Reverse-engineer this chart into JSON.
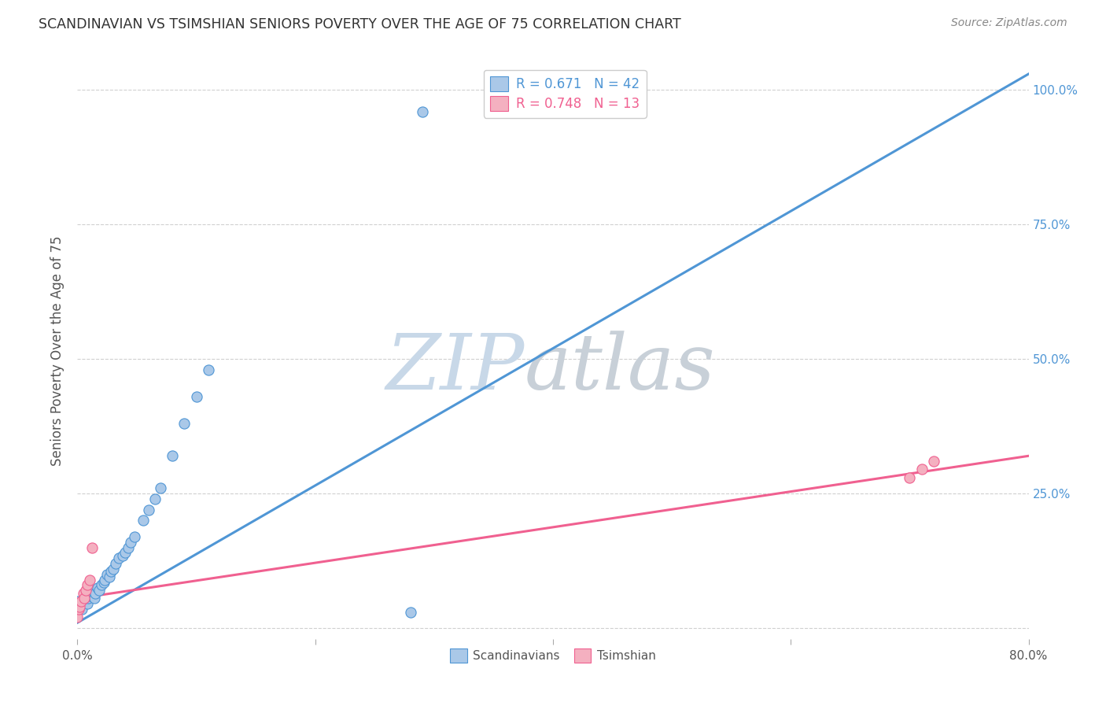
{
  "title": "SCANDINAVIAN VS TSIMSHIAN SENIORS POVERTY OVER THE AGE OF 75 CORRELATION CHART",
  "source": "Source: ZipAtlas.com",
  "ylabel": "Seniors Poverty Over the Age of 75",
  "xlim": [
    0.0,
    0.8
  ],
  "ylim": [
    -0.02,
    1.05
  ],
  "legend_entries": [
    {
      "label": "Scandinavians",
      "R": "0.671",
      "N": "42"
    },
    {
      "label": "Tsimshian",
      "R": "0.748",
      "N": "13"
    }
  ],
  "scand_x": [
    0.0,
    0.002,
    0.003,
    0.004,
    0.005,
    0.006,
    0.007,
    0.008,
    0.009,
    0.01,
    0.01,
    0.011,
    0.012,
    0.013,
    0.014,
    0.015,
    0.017,
    0.018,
    0.02,
    0.022,
    0.023,
    0.025,
    0.027,
    0.028,
    0.03,
    0.032,
    0.035,
    0.038,
    0.04,
    0.043,
    0.045,
    0.048,
    0.055,
    0.06,
    0.065,
    0.07,
    0.08,
    0.09,
    0.1,
    0.11,
    0.28,
    0.29
  ],
  "scand_y": [
    0.05,
    0.04,
    0.045,
    0.035,
    0.055,
    0.05,
    0.06,
    0.045,
    0.055,
    0.06,
    0.07,
    0.065,
    0.06,
    0.07,
    0.055,
    0.065,
    0.075,
    0.07,
    0.08,
    0.085,
    0.09,
    0.1,
    0.095,
    0.105,
    0.11,
    0.12,
    0.13,
    0.135,
    0.14,
    0.15,
    0.16,
    0.17,
    0.2,
    0.22,
    0.24,
    0.26,
    0.32,
    0.38,
    0.43,
    0.48,
    0.03,
    0.96
  ],
  "tsim_x": [
    0.0,
    0.001,
    0.002,
    0.003,
    0.005,
    0.006,
    0.007,
    0.008,
    0.01,
    0.012,
    0.7,
    0.71,
    0.72
  ],
  "tsim_y": [
    0.02,
    0.035,
    0.04,
    0.05,
    0.065,
    0.055,
    0.07,
    0.08,
    0.09,
    0.15,
    0.28,
    0.295,
    0.31
  ],
  "scand_line_x": [
    0.0,
    0.8
  ],
  "scand_line_y": [
    0.01,
    1.03
  ],
  "tsim_line_x": [
    0.0,
    0.8
  ],
  "tsim_line_y": [
    0.055,
    0.32
  ],
  "scand_color": "#4f96d5",
  "tsim_color": "#f06090",
  "scatter_scand_color": "#aac8e8",
  "scatter_tsim_color": "#f4b0c0",
  "bg_color": "#ffffff",
  "grid_color": "#d0d0d0",
  "watermark_zip": "ZIP",
  "watermark_atlas": "atlas",
  "watermark_color_zip": "#c8d8e8",
  "watermark_color_atlas": "#c8d0d8",
  "title_color": "#333333",
  "right_axis_label_color": "#4f96d5",
  "marker_size": 90
}
